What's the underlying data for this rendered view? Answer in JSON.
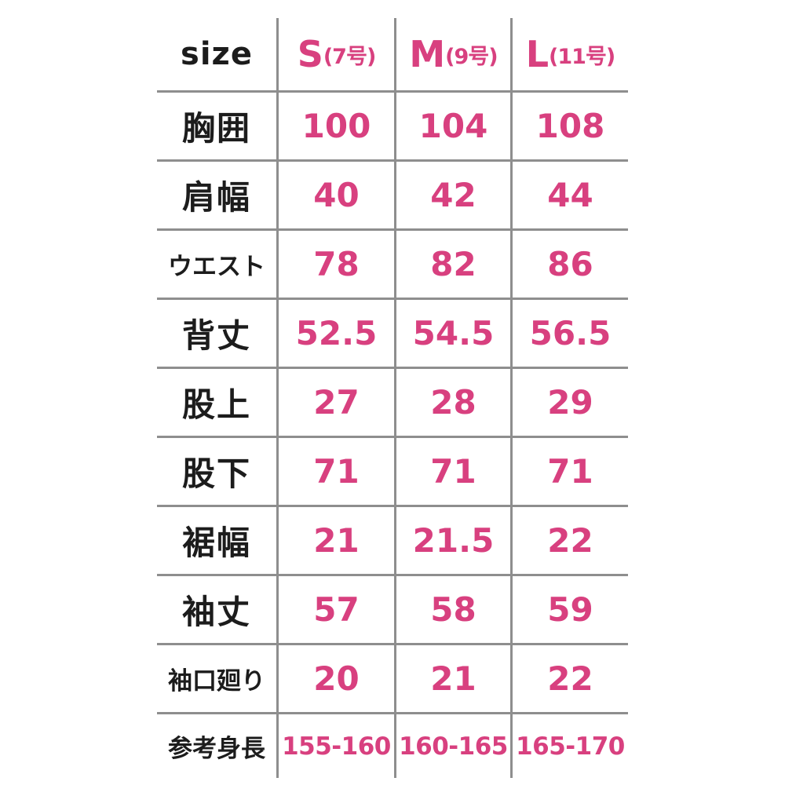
{
  "table": {
    "size_label": "size",
    "columns": [
      {
        "size": "S",
        "tag": "(7号)"
      },
      {
        "size": "M",
        "tag": "(9号)"
      },
      {
        "size": "L",
        "tag": "(11号)"
      }
    ],
    "rows": [
      {
        "label": "胸囲",
        "values": [
          "100",
          "104",
          "108"
        ]
      },
      {
        "label": "肩幅",
        "values": [
          "40",
          "42",
          "44"
        ]
      },
      {
        "label": "ウエスト",
        "values": [
          "78",
          "82",
          "86"
        ]
      },
      {
        "label": "背丈",
        "values": [
          "52.5",
          "54.5",
          "56.5"
        ]
      },
      {
        "label": "股上",
        "values": [
          "27",
          "28",
          "29"
        ]
      },
      {
        "label": "股下",
        "values": [
          "71",
          "71",
          "71"
        ]
      },
      {
        "label": "裾幅",
        "values": [
          "21",
          "21.5",
          "22"
        ]
      },
      {
        "label": "袖丈",
        "values": [
          "57",
          "58",
          "59"
        ]
      },
      {
        "label": "袖口廻り",
        "values": [
          "20",
          "21",
          "22"
        ]
      },
      {
        "label": "参考身長",
        "values": [
          "155-160",
          "160-165",
          "165-170"
        ]
      }
    ]
  },
  "colors": {
    "accent_pink": "#d8407f",
    "label_black": "#1c1c1c",
    "grid_gray": "#8e8e8e",
    "background": "#ffffff"
  },
  "chart_data": {
    "type": "table",
    "title": "size",
    "columns": [
      "size",
      "S(7号)",
      "M(9号)",
      "L(11号)"
    ],
    "rows": [
      [
        "胸囲",
        100,
        104,
        108
      ],
      [
        "肩幅",
        40,
        42,
        44
      ],
      [
        "ウエスト",
        78,
        82,
        86
      ],
      [
        "背丈",
        52.5,
        54.5,
        56.5
      ],
      [
        "股上",
        27,
        28,
        29
      ],
      [
        "股下",
        71,
        71,
        71
      ],
      [
        "裾幅",
        21,
        21.5,
        22
      ],
      [
        "袖丈",
        57,
        58,
        59
      ],
      [
        "袖口廻り",
        20,
        21,
        22
      ],
      [
        "参考身長",
        "155-160",
        "160-165",
        "165-170"
      ]
    ]
  }
}
